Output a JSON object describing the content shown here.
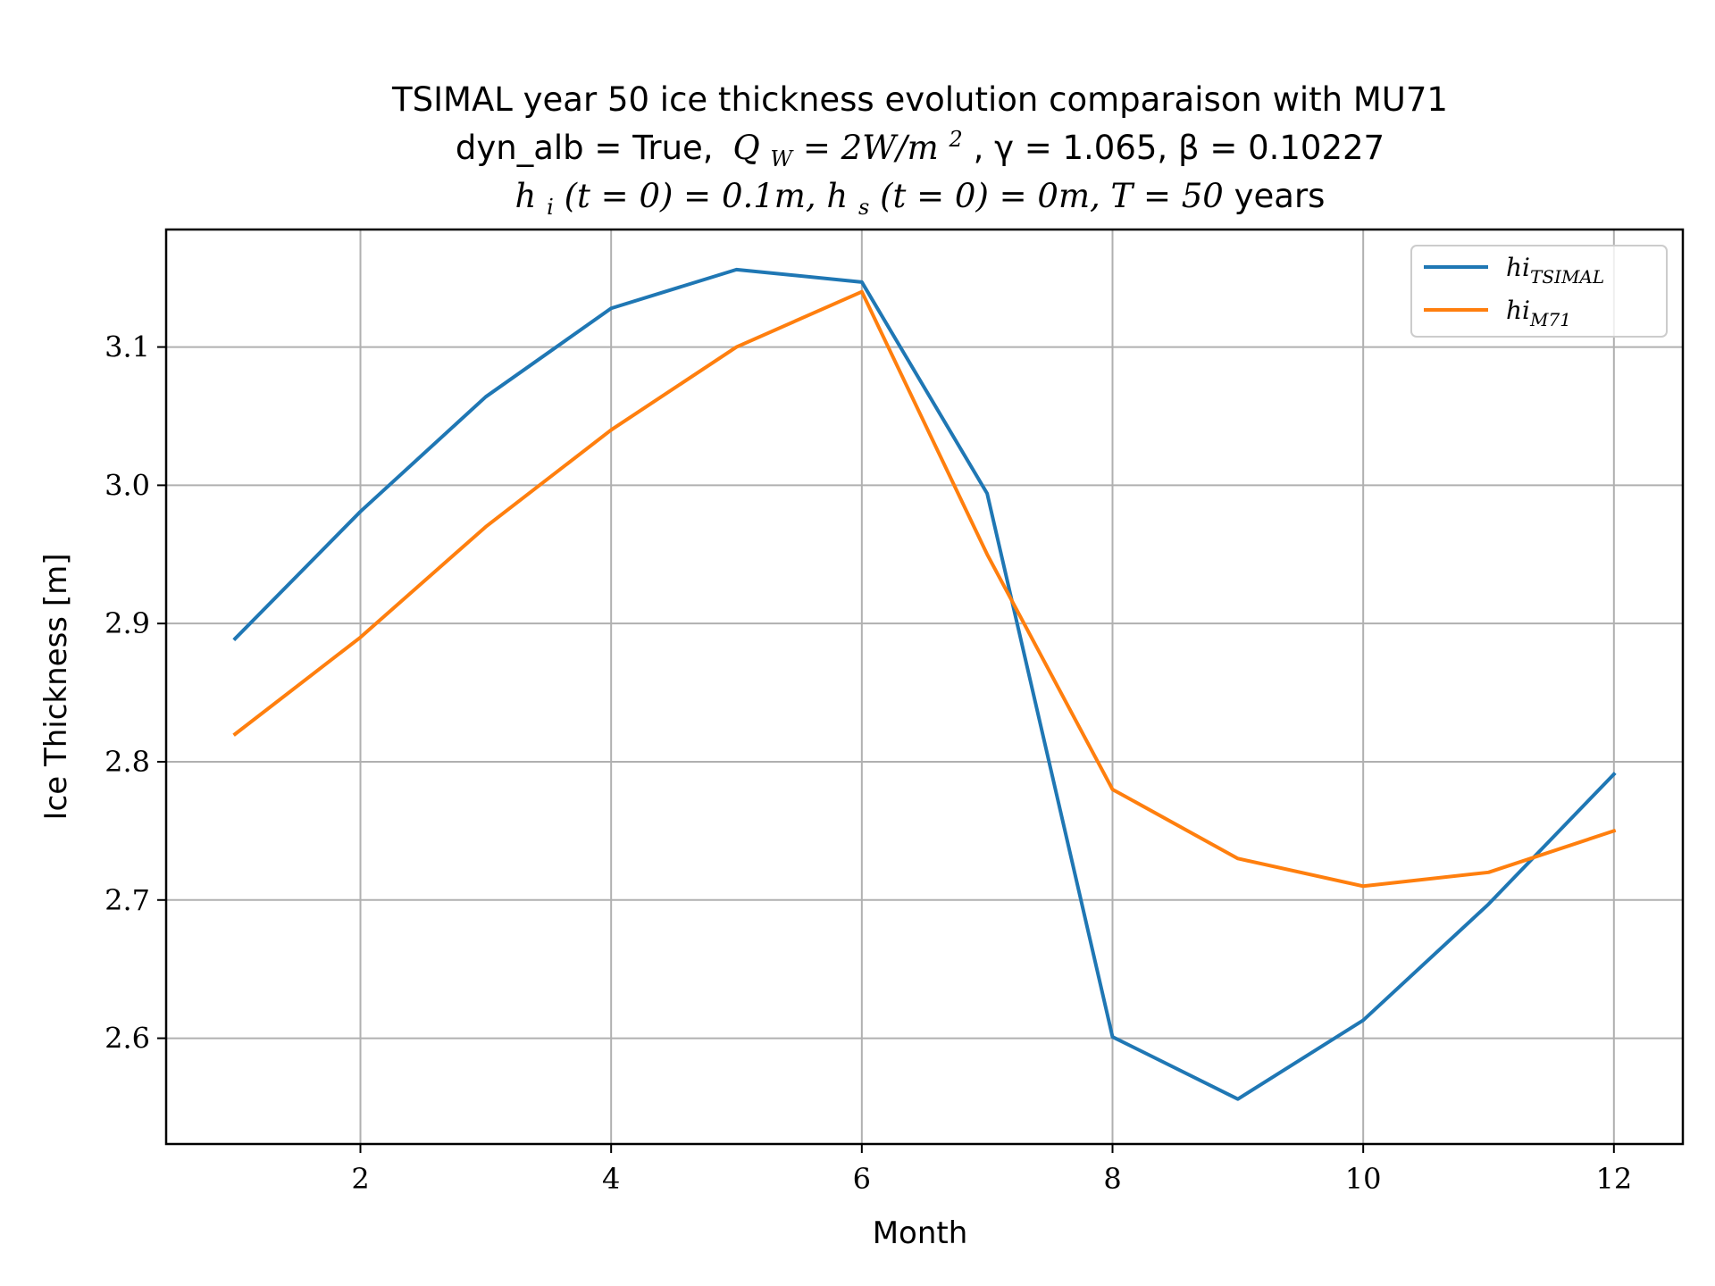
{
  "chart_data": {
    "type": "line",
    "title": {
      "line1": "TSIMAL year 50 ice thickness evolution comparaison with MU71",
      "line2_parts": {
        "dyn": "dyn_alb = True,",
        "qw": "Q",
        "qw_sub": "W",
        "qw_rest": " = 2W/m",
        "qw_sup": "2",
        "gamma": ", γ = 1.065, β = 0.10227"
      },
      "line3_parts": {
        "hi": "h",
        "hi_sub": "i",
        "hi_rest": "(t = 0) = 0.1m, h",
        "hs_sub": "s",
        "hs_rest": "(t = 0) = 0m, T = 50",
        "years": " years"
      }
    },
    "xlabel": "Month",
    "ylabel": "Ice Thickness [m]",
    "xlim": [
      0.45,
      12.55
    ],
    "ylim": [
      2.5235,
      3.185
    ],
    "xticks": [
      2,
      4,
      6,
      8,
      10,
      12
    ],
    "yticks": [
      2.6,
      2.7,
      2.8,
      2.9,
      3.0,
      3.1
    ],
    "ytick_labels": [
      "2.6",
      "2.7",
      "2.8",
      "2.9",
      "3.0",
      "3.1"
    ],
    "grid": true,
    "legend_position": "top-right",
    "x": [
      1,
      2,
      3,
      4,
      5,
      6,
      7,
      8,
      9,
      10,
      11,
      12
    ],
    "series": [
      {
        "name": "hi",
        "name_sub": "TSIMAL",
        "color": "#1f77b4",
        "values": [
          2.889,
          2.981,
          3.064,
          3.128,
          3.156,
          3.147,
          2.994,
          2.601,
          2.556,
          2.613,
          2.697,
          2.791
        ]
      },
      {
        "name": "hi",
        "name_sub": "M71",
        "color": "#ff7f0e",
        "values": [
          2.82,
          2.89,
          2.97,
          3.04,
          3.1,
          3.14,
          2.95,
          2.78,
          2.73,
          2.71,
          2.72,
          2.75
        ]
      }
    ]
  }
}
